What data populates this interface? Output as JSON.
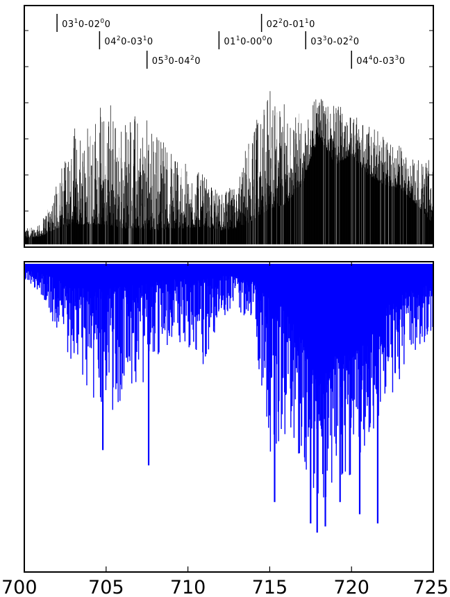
{
  "chart_data": [
    {
      "type": "line",
      "panel": "observed",
      "color": "#000000",
      "xlim": [
        700,
        725
      ],
      "grid": false,
      "band_markers": [
        {
          "x": 702.0,
          "tier": 0,
          "parts": [
            [
              "03",
              "1",
              "0"
            ],
            [
              "02",
              "0",
              "0"
            ]
          ]
        },
        {
          "x": 704.6,
          "tier": 1,
          "parts": [
            [
              "04",
              "2",
              "0"
            ],
            [
              "03",
              "1",
              "0"
            ]
          ]
        },
        {
          "x": 707.5,
          "tier": 2,
          "parts": [
            [
              "05",
              "3",
              "0"
            ],
            [
              "04",
              "2",
              "0"
            ]
          ]
        },
        {
          "x": 711.9,
          "tier": 1,
          "parts": [
            [
              "01",
              "1",
              "0"
            ],
            [
              "00",
              "0",
              "0"
            ]
          ]
        },
        {
          "x": 714.5,
          "tier": 0,
          "parts": [
            [
              "02",
              "2",
              "0"
            ],
            [
              "01",
              "1",
              "0"
            ]
          ]
        },
        {
          "x": 717.2,
          "tier": 1,
          "parts": [
            [
              "03",
              "3",
              "0"
            ],
            [
              "02",
              "2",
              "0"
            ]
          ]
        },
        {
          "x": 720.0,
          "tier": 3,
          "parts": [
            [
              "04",
              "4",
              "0"
            ],
            [
              "03",
              "3",
              "0"
            ]
          ]
        }
      ],
      "envelope": {
        "x": [
          700,
          701,
          702,
          703,
          704,
          705,
          706,
          707,
          708,
          709,
          710,
          711,
          712,
          713,
          714,
          715,
          716,
          717,
          718,
          719,
          720,
          721,
          722,
          723,
          724,
          725
        ],
        "peak": [
          0.08,
          0.1,
          0.35,
          0.55,
          0.68,
          0.7,
          0.62,
          0.66,
          0.6,
          0.5,
          0.4,
          0.35,
          0.25,
          0.3,
          0.6,
          0.78,
          0.7,
          0.65,
          0.75,
          0.72,
          0.68,
          0.6,
          0.55,
          0.5,
          0.45,
          0.45
        ],
        "baseline": [
          0.03,
          0.04,
          0.08,
          0.1,
          0.1,
          0.1,
          0.08,
          0.08,
          0.07,
          0.08,
          0.08,
          0.09,
          0.07,
          0.08,
          0.12,
          0.18,
          0.2,
          0.3,
          0.55,
          0.4,
          0.45,
          0.35,
          0.3,
          0.28,
          0.2,
          0.1
        ]
      }
    },
    {
      "type": "line",
      "panel": "simulated",
      "color": "#0000ff",
      "inverted": true,
      "xlim": [
        700,
        725
      ],
      "xticks": [
        "700",
        "705",
        "710",
        "715",
        "720",
        "725"
      ],
      "grid": false,
      "strong_lines": [
        {
          "x": 704.8,
          "depth": 0.61
        },
        {
          "x": 707.6,
          "depth": 0.66
        },
        {
          "x": 715.3,
          "depth": 0.78
        },
        {
          "x": 717.5,
          "depth": 0.85
        },
        {
          "x": 717.9,
          "depth": 0.88
        },
        {
          "x": 718.4,
          "depth": 0.86
        },
        {
          "x": 719.3,
          "depth": 0.78
        },
        {
          "x": 720.5,
          "depth": 0.82
        },
        {
          "x": 721.6,
          "depth": 0.85
        }
      ],
      "envelope": {
        "x": [
          700,
          701,
          702,
          703,
          704,
          705,
          706,
          707,
          708,
          709,
          710,
          711,
          712,
          713,
          714,
          715,
          716,
          717,
          718,
          719,
          720,
          721,
          722,
          723,
          724,
          725
        ],
        "depth": [
          0.05,
          0.1,
          0.22,
          0.35,
          0.42,
          0.5,
          0.45,
          0.42,
          0.32,
          0.25,
          0.3,
          0.35,
          0.18,
          0.15,
          0.2,
          0.62,
          0.58,
          0.65,
          0.82,
          0.72,
          0.7,
          0.6,
          0.45,
          0.4,
          0.3,
          0.22
        ]
      },
      "background_depth": {
        "x": [
          700,
          701,
          702,
          703,
          704,
          705,
          706,
          707,
          708,
          709,
          710,
          711,
          712,
          713,
          714,
          715,
          716,
          717,
          718,
          719,
          720,
          721,
          722,
          723,
          724,
          725
        ],
        "depth": [
          0.02,
          0.03,
          0.05,
          0.08,
          0.08,
          0.08,
          0.07,
          0.07,
          0.06,
          0.05,
          0.05,
          0.05,
          0.04,
          0.04,
          0.06,
          0.1,
          0.15,
          0.25,
          0.4,
          0.3,
          0.3,
          0.25,
          0.15,
          0.1,
          0.08,
          0.05
        ]
      }
    }
  ]
}
